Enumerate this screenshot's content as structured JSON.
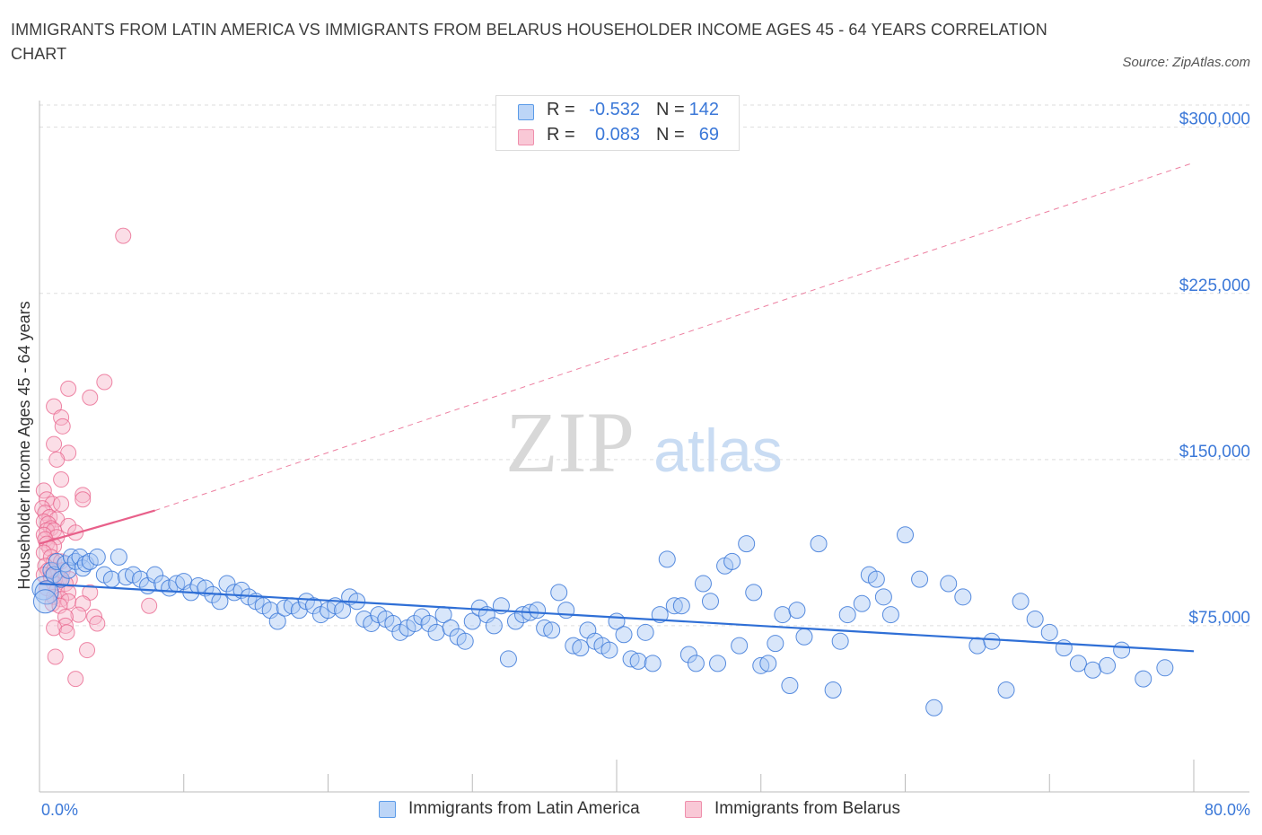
{
  "title": "IMMIGRANTS FROM LATIN AMERICA VS IMMIGRANTS FROM BELARUS HOUSEHOLDER INCOME AGES 45 - 64 YEARS CORRELATION CHART",
  "source": "Source: ZipAtlas.com",
  "watermark": {
    "zip": "ZIP",
    "atlas": "atlas"
  },
  "legend_stats": [
    {
      "r_label": "R =",
      "r_value": "-0.532",
      "n_label": "N =",
      "n_value": "142",
      "color": "#5b9be8",
      "fill": "#bcd5f7"
    },
    {
      "r_label": "R =",
      "r_value": "0.083",
      "n_label": "N =",
      "n_value": "69",
      "color": "#ef8fac",
      "fill": "#f9c8d6"
    }
  ],
  "chart_data": {
    "type": "scatter",
    "title": "IMMIGRANTS FROM LATIN AMERICA VS IMMIGRANTS FROM BELARUS HOUSEHOLDER INCOME AGES 45 - 64 YEARS CORRELATION CHART",
    "xlabel": "",
    "ylabel": "Householder Income Ages 45 - 64 years",
    "xlim": [
      0,
      80
    ],
    "ylim": [
      0,
      310000
    ],
    "x_tick_labels": [
      "0.0%",
      "80.0%"
    ],
    "y_ticks": [
      75000,
      150000,
      225000,
      300000
    ],
    "y_tick_labels": [
      "$75,000",
      "$150,000",
      "$225,000",
      "$300,000"
    ],
    "grid": true,
    "legend_position": "bottom",
    "series": [
      {
        "name": "Immigrants from Latin America",
        "color": "#3b78d8",
        "fill": "#a9c8f3",
        "trend": {
          "x": [
            0,
            80
          ],
          "y": [
            94000,
            63500
          ],
          "style": "solid"
        },
        "points": [
          [
            0.3,
            92000
          ],
          [
            0.5,
            90000
          ],
          [
            0.4,
            86000
          ],
          [
            0.8,
            100000
          ],
          [
            1.0,
            98000
          ],
          [
            1.2,
            104000
          ],
          [
            1.5,
            96000
          ],
          [
            1.8,
            103000
          ],
          [
            2.0,
            100000
          ],
          [
            2.2,
            106000
          ],
          [
            2.5,
            104000
          ],
          [
            2.8,
            106000
          ],
          [
            3.0,
            101000
          ],
          [
            3.2,
            103000
          ],
          [
            3.5,
            104000
          ],
          [
            4.0,
            106000
          ],
          [
            4.5,
            98000
          ],
          [
            5.0,
            96000
          ],
          [
            5.5,
            106000
          ],
          [
            6.0,
            97000
          ],
          [
            6.5,
            98000
          ],
          [
            7.0,
            96000
          ],
          [
            7.5,
            93000
          ],
          [
            8.0,
            98000
          ],
          [
            8.5,
            94000
          ],
          [
            9.0,
            92000
          ],
          [
            9.5,
            94000
          ],
          [
            10.0,
            95000
          ],
          [
            10.5,
            90000
          ],
          [
            11.0,
            93000
          ],
          [
            11.5,
            92000
          ],
          [
            12.0,
            89000
          ],
          [
            12.5,
            86000
          ],
          [
            13.0,
            94000
          ],
          [
            13.5,
            90000
          ],
          [
            14.0,
            91000
          ],
          [
            14.5,
            88000
          ],
          [
            15.0,
            86000
          ],
          [
            15.5,
            84000
          ],
          [
            16.0,
            82000
          ],
          [
            16.5,
            77000
          ],
          [
            17.0,
            83000
          ],
          [
            17.5,
            84000
          ],
          [
            18.0,
            82000
          ],
          [
            18.5,
            86000
          ],
          [
            19.0,
            84000
          ],
          [
            19.5,
            80000
          ],
          [
            20.0,
            82000
          ],
          [
            20.5,
            84000
          ],
          [
            21.0,
            82000
          ],
          [
            21.5,
            88000
          ],
          [
            22.0,
            86000
          ],
          [
            22.5,
            78000
          ],
          [
            23.0,
            76000
          ],
          [
            23.5,
            80000
          ],
          [
            24.0,
            78000
          ],
          [
            24.5,
            76000
          ],
          [
            25.0,
            72000
          ],
          [
            25.5,
            74000
          ],
          [
            26.0,
            76000
          ],
          [
            26.5,
            79000
          ],
          [
            27.0,
            76000
          ],
          [
            27.5,
            72000
          ],
          [
            28.0,
            80000
          ],
          [
            28.5,
            74000
          ],
          [
            29.0,
            70000
          ],
          [
            29.5,
            68000
          ],
          [
            30.0,
            77000
          ],
          [
            30.5,
            83000
          ],
          [
            31.0,
            80000
          ],
          [
            31.5,
            75000
          ],
          [
            32.0,
            84000
          ],
          [
            32.5,
            60000
          ],
          [
            33.0,
            77000
          ],
          [
            33.5,
            80000
          ],
          [
            34.0,
            81000
          ],
          [
            34.5,
            82000
          ],
          [
            35.0,
            74000
          ],
          [
            35.5,
            73000
          ],
          [
            36.0,
            90000
          ],
          [
            36.5,
            82000
          ],
          [
            37.0,
            66000
          ],
          [
            37.5,
            65000
          ],
          [
            38.0,
            73000
          ],
          [
            38.5,
            68000
          ],
          [
            39.0,
            66000
          ],
          [
            39.5,
            64000
          ],
          [
            40.0,
            77000
          ],
          [
            40.5,
            71000
          ],
          [
            41.0,
            60000
          ],
          [
            41.5,
            59000
          ],
          [
            42.0,
            72000
          ],
          [
            42.5,
            58000
          ],
          [
            43.0,
            80000
          ],
          [
            43.5,
            105000
          ],
          [
            44.0,
            84000
          ],
          [
            44.5,
            84000
          ],
          [
            45.0,
            62000
          ],
          [
            45.5,
            58000
          ],
          [
            46.0,
            94000
          ],
          [
            46.5,
            86000
          ],
          [
            47.0,
            58000
          ],
          [
            47.5,
            102000
          ],
          [
            48.0,
            104000
          ],
          [
            48.5,
            66000
          ],
          [
            49.0,
            112000
          ],
          [
            49.5,
            90000
          ],
          [
            50.0,
            57000
          ],
          [
            50.5,
            58000
          ],
          [
            51.0,
            67000
          ],
          [
            51.5,
            80000
          ],
          [
            52.0,
            48000
          ],
          [
            52.5,
            82000
          ],
          [
            53.0,
            70000
          ],
          [
            54.0,
            112000
          ],
          [
            55.0,
            46000
          ],
          [
            55.5,
            68000
          ],
          [
            56.0,
            80000
          ],
          [
            57.0,
            85000
          ],
          [
            57.5,
            98000
          ],
          [
            58.0,
            96000
          ],
          [
            58.5,
            88000
          ],
          [
            59.0,
            80000
          ],
          [
            60.0,
            116000
          ],
          [
            61.0,
            96000
          ],
          [
            62.0,
            38000
          ],
          [
            63.0,
            94000
          ],
          [
            64.0,
            88000
          ],
          [
            65.0,
            66000
          ],
          [
            66.0,
            68000
          ],
          [
            67.0,
            46000
          ],
          [
            68.0,
            86000
          ],
          [
            69.0,
            78000
          ],
          [
            70.0,
            72000
          ],
          [
            71.0,
            65000
          ],
          [
            72.0,
            58000
          ],
          [
            73.0,
            55000
          ],
          [
            74.0,
            57000
          ],
          [
            75.0,
            64000
          ],
          [
            76.5,
            51000
          ],
          [
            78.0,
            56000
          ]
        ]
      },
      {
        "name": "Immigrants from Belarus",
        "color": "#e8608a",
        "fill": "#f6b6c9",
        "trend_solid": {
          "x": [
            0,
            8
          ],
          "y": [
            112000,
            127000
          ]
        },
        "trend_dashed": {
          "x": [
            8,
            80
          ],
          "y": [
            127000,
            284000
          ]
        },
        "points": [
          [
            5.8,
            251000
          ],
          [
            4.5,
            185000
          ],
          [
            2.0,
            182000
          ],
          [
            3.5,
            178000
          ],
          [
            1.0,
            174000
          ],
          [
            1.5,
            169000
          ],
          [
            1.6,
            165000
          ],
          [
            1.0,
            157000
          ],
          [
            2.0,
            153000
          ],
          [
            1.2,
            150000
          ],
          [
            1.5,
            141000
          ],
          [
            0.3,
            136000
          ],
          [
            3.0,
            134000
          ],
          [
            3.0,
            132000
          ],
          [
            0.5,
            132000
          ],
          [
            0.9,
            130000
          ],
          [
            1.5,
            130000
          ],
          [
            0.2,
            128000
          ],
          [
            0.4,
            126000
          ],
          [
            0.7,
            124000
          ],
          [
            1.2,
            123000
          ],
          [
            0.3,
            122000
          ],
          [
            0.6,
            121000
          ],
          [
            2.0,
            120000
          ],
          [
            0.8,
            119000
          ],
          [
            0.5,
            118000
          ],
          [
            1.0,
            118000
          ],
          [
            2.5,
            117000
          ],
          [
            0.3,
            116000
          ],
          [
            1.2,
            115000
          ],
          [
            0.4,
            114000
          ],
          [
            0.5,
            112000
          ],
          [
            1.0,
            111000
          ],
          [
            0.7,
            110000
          ],
          [
            0.3,
            108000
          ],
          [
            0.8,
            106000
          ],
          [
            1.0,
            104000
          ],
          [
            1.5,
            104000
          ],
          [
            0.4,
            102000
          ],
          [
            0.6,
            100000
          ],
          [
            1.0,
            100000
          ],
          [
            1.6,
            100000
          ],
          [
            0.3,
            98000
          ],
          [
            0.8,
            97000
          ],
          [
            1.4,
            96000
          ],
          [
            2.1,
            96000
          ],
          [
            1.0,
            94000
          ],
          [
            1.8,
            94000
          ],
          [
            0.5,
            92000
          ],
          [
            1.2,
            91000
          ],
          [
            2.0,
            90000
          ],
          [
            3.5,
            90000
          ],
          [
            1.0,
            88000
          ],
          [
            1.5,
            87000
          ],
          [
            2.0,
            86000
          ],
          [
            0.9,
            85000
          ],
          [
            3.0,
            85000
          ],
          [
            7.6,
            84000
          ],
          [
            1.4,
            84000
          ],
          [
            2.7,
            80000
          ],
          [
            1.8,
            79000
          ],
          [
            3.8,
            79000
          ],
          [
            4.0,
            76000
          ],
          [
            1.8,
            75000
          ],
          [
            1.0,
            74000
          ],
          [
            1.9,
            72000
          ],
          [
            3.3,
            64000
          ],
          [
            1.1,
            61000
          ],
          [
            2.5,
            51000
          ]
        ]
      }
    ]
  },
  "legend_bottom": [
    {
      "label": "Immigrants from Latin America",
      "color": "#5b9be8",
      "fill": "#bcd5f7"
    },
    {
      "label": "Immigrants from Belarus",
      "color": "#ef8fac",
      "fill": "#f9c8d6"
    }
  ]
}
